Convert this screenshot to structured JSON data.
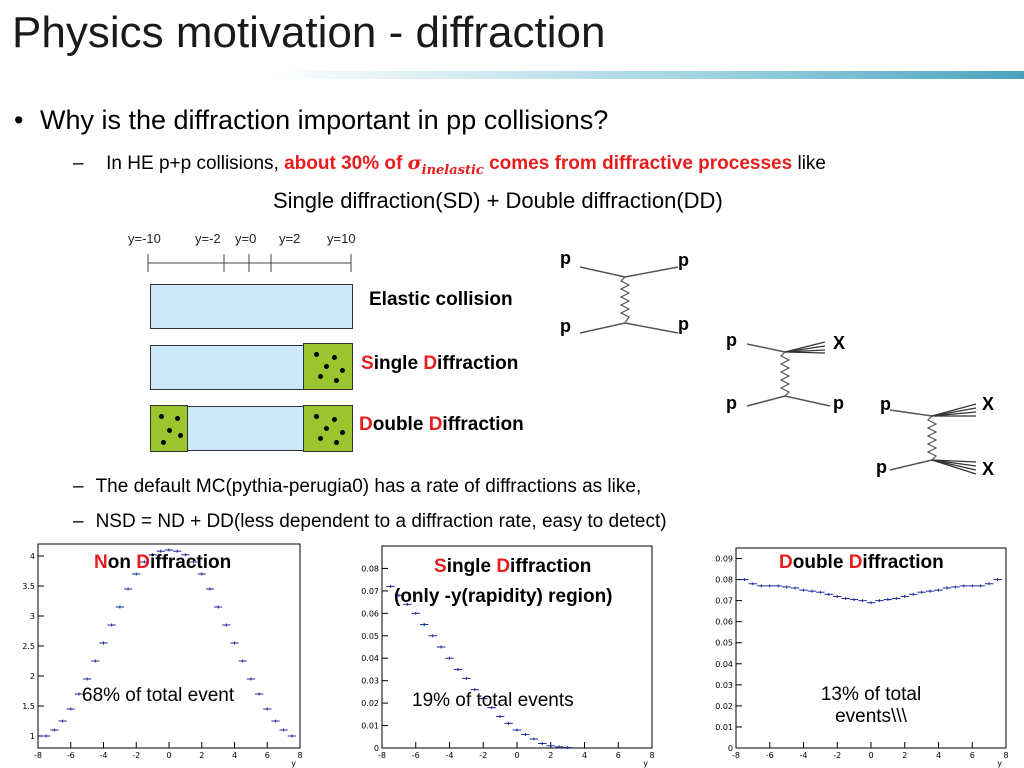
{
  "slide": {
    "title": "Physics motivation - diffraction",
    "bullet1": "Why is the diffraction important in pp collisions?",
    "bullet_dot": "•",
    "dash": "–",
    "sub1_prefix": "In HE p+p collisions, ",
    "sub1_red1": "about 30% of ",
    "sub1_sigma": "σ",
    "sub1_sigma_sub": "inelastic",
    "sub1_red2": " comes from diffractive processes",
    "sub1_suffix": " like",
    "center_line": "Single diffraction(SD) + Double diffraction(DD)",
    "sub2": "The default MC(pythia-perugia0) has a rate of diffractions as like,",
    "sub3": "NSD = ND + DD(less dependent to a diffraction rate, easy to detect)"
  },
  "rapidity_ruler": {
    "labels": [
      "y=-10",
      "y=-2",
      "y=0",
      "y=2",
      "y=10"
    ]
  },
  "processes": {
    "elastic": "Elastic collision",
    "single_s": "S",
    "single_rest": "ingle ",
    "single_d": "D",
    "single_rest2": "iffraction",
    "double_d1": "D",
    "double_rest": "ouble ",
    "double_d2": "D",
    "double_rest2": "iffraction"
  },
  "feynman": {
    "elastic": {
      "tl": "p",
      "tr": "p",
      "bl": "p",
      "br": "p"
    },
    "single": {
      "tl": "p",
      "tr": "X",
      "bl": "p",
      "br": "p"
    },
    "double": {
      "tl": "p",
      "tr": "X",
      "bl": "p",
      "br": "X"
    }
  },
  "plots": [
    {
      "title_r1": "N",
      "title_1": "on ",
      "title_r2": "D",
      "title_2": "iffraction",
      "title_line2": "",
      "caption": "68% of total event",
      "y_ticks": [
        "4",
        "3.5",
        "3",
        "2.5",
        "2",
        "1.5",
        "1"
      ],
      "x_ticks": [
        "-8",
        "-6",
        "-4",
        "-2",
        "0",
        "2",
        "4",
        "6",
        "8"
      ],
      "x_label": "y",
      "ylim": [
        0.8,
        4.2
      ]
    },
    {
      "title_r1": "S",
      "title_1": "ingle ",
      "title_r2": "D",
      "title_2": "iffraction",
      "title_line2": "(only -y(rapidity) region)",
      "caption": "19% of total events",
      "y_ticks": [
        "0.08",
        "0.07",
        "0.06",
        "0.05",
        "0.04",
        "0.03",
        "0.02",
        "0.01",
        "0"
      ],
      "x_ticks": [
        "-8",
        "-6",
        "-4",
        "-2",
        "0",
        "2",
        "4",
        "6",
        "8"
      ],
      "x_label": "y",
      "ylim": [
        0,
        0.09
      ]
    },
    {
      "title_r1": "D",
      "title_1": "ouble ",
      "title_r2": "D",
      "title_2": "iffraction",
      "title_line2": "",
      "caption": "13% of total events\\\\\\",
      "y_ticks": [
        "0.09",
        "0.08",
        "0.07",
        "0.06",
        "0.05",
        "0.04",
        "0.03",
        "0.02",
        "0.01",
        "0"
      ],
      "x_ticks": [
        "-8",
        "-6",
        "-4",
        "-2",
        "0",
        "2",
        "4",
        "6",
        "8"
      ],
      "x_label": "y",
      "ylim": [
        0,
        0.095
      ]
    }
  ],
  "chart_data": [
    {
      "type": "scatter",
      "title": "Non Diffraction",
      "xlabel": "y",
      "xlim": [
        -8,
        8
      ],
      "ylim": [
        0.8,
        4.2
      ],
      "x": [
        -7.5,
        -7,
        -6.5,
        -6,
        -5.5,
        -5,
        -4.5,
        -4,
        -3.5,
        -3,
        -2.5,
        -2,
        -1.5,
        -1,
        -0.5,
        0,
        0.5,
        1,
        1.5,
        2,
        2.5,
        3,
        3.5,
        4,
        4.5,
        5,
        5.5,
        6,
        6.5,
        7,
        7.5
      ],
      "y": [
        1.0,
        1.1,
        1.25,
        1.45,
        1.7,
        1.95,
        2.25,
        2.55,
        2.85,
        3.15,
        3.45,
        3.7,
        3.9,
        4.02,
        4.08,
        4.1,
        4.08,
        4.02,
        3.9,
        3.7,
        3.45,
        3.15,
        2.85,
        2.55,
        2.25,
        1.95,
        1.7,
        1.45,
        1.25,
        1.1,
        1.0
      ]
    },
    {
      "type": "scatter",
      "title": "Single Diffraction (only -y(rapidity) region)",
      "xlabel": "y",
      "xlim": [
        -8,
        8
      ],
      "ylim": [
        0,
        0.09
      ],
      "x": [
        -7.5,
        -7,
        -6.5,
        -6,
        -5.5,
        -5,
        -4.5,
        -4,
        -3.5,
        -3,
        -2.5,
        -2,
        -1.5,
        -1,
        -0.5,
        0,
        0.5,
        1,
        1.5,
        2,
        2.5,
        3
      ],
      "y": [
        0.072,
        0.068,
        0.064,
        0.06,
        0.055,
        0.05,
        0.045,
        0.04,
        0.035,
        0.031,
        0.026,
        0.022,
        0.018,
        0.014,
        0.011,
        0.008,
        0.006,
        0.004,
        0.002,
        0.001,
        0.0005,
        0.0002
      ]
    },
    {
      "type": "scatter",
      "title": "Double Diffraction",
      "xlabel": "y",
      "xlim": [
        -8,
        8
      ],
      "ylim": [
        0,
        0.095
      ],
      "x": [
        -7.5,
        -7,
        -6.5,
        -6,
        -5.5,
        -5,
        -4.5,
        -4,
        -3.5,
        -3,
        -2.5,
        -2,
        -1.5,
        -1,
        -0.5,
        0,
        0.5,
        1,
        1.5,
        2,
        2.5,
        3,
        3.5,
        4,
        4.5,
        5,
        5.5,
        6,
        6.5,
        7,
        7.5
      ],
      "y": [
        0.08,
        0.078,
        0.077,
        0.077,
        0.077,
        0.0765,
        0.076,
        0.075,
        0.0745,
        0.074,
        0.073,
        0.072,
        0.071,
        0.0705,
        0.07,
        0.069,
        0.07,
        0.0705,
        0.071,
        0.072,
        0.073,
        0.074,
        0.0745,
        0.075,
        0.076,
        0.0765,
        0.077,
        0.077,
        0.077,
        0.078,
        0.08
      ]
    }
  ]
}
